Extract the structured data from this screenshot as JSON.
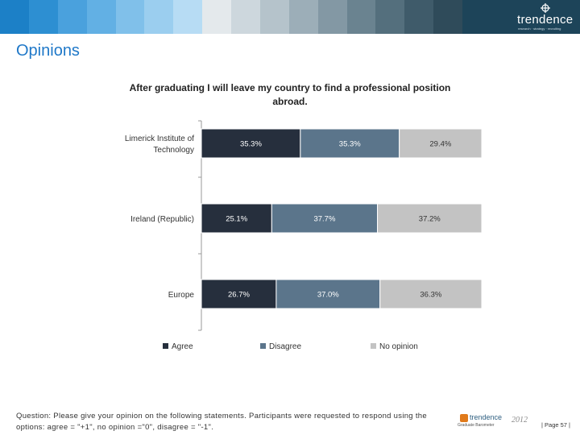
{
  "header": {
    "band_colors": [
      "#1c80c7",
      "#2d8fd2",
      "#4aa1dd",
      "#62b0e4",
      "#80c0ea",
      "#9bceef",
      "#b7dcf4",
      "#e4e9ec",
      "#cdd7dd",
      "#b5c3cb",
      "#9caeb8",
      "#8398a4",
      "#6a8390",
      "#546f7d",
      "#3f5b6a",
      "#2f4b5a",
      "#1d4459"
    ],
    "brand_name": "trendence",
    "brand_tagline": "research · strategy · recruiting"
  },
  "section_title": "Opinions",
  "chart_data": {
    "type": "bar",
    "orientation": "horizontal",
    "stacked": true,
    "title": "After graduating I will leave my country to find a professional position abroad.",
    "title_lines": [
      "After graduating I will leave my country to find a professional position",
      "abroad."
    ],
    "categories": [
      "Limerick Institute of Technology",
      "Ireland (Republic)",
      "Europe"
    ],
    "category_lines": [
      [
        "Limerick Institute of",
        "Technology"
      ],
      [
        "Ireland (Republic)"
      ],
      [
        "Europe"
      ]
    ],
    "series": [
      {
        "name": "Agree",
        "values": [
          35.3,
          25.1,
          26.7
        ],
        "labels": [
          "35.3%",
          "25.1%",
          "26.7%"
        ],
        "color": "#262f3d"
      },
      {
        "name": "Disagree",
        "values": [
          35.3,
          37.7,
          37.0
        ],
        "labels": [
          "35.3%",
          "37.7%",
          "37.0%"
        ],
        "color": "#5b758b"
      },
      {
        "name": "No opinion",
        "values": [
          29.4,
          37.2,
          36.3
        ],
        "labels": [
          "29.4%",
          "37.2%",
          "36.3%"
        ],
        "color": "#c3c3c3"
      }
    ],
    "xlim": [
      0,
      100
    ],
    "grid": false,
    "legend_position": "bottom"
  },
  "footer": {
    "question_line1": "Question: Please give your opinion on the following statements. Participants were requested to respond using the",
    "question_line2": "options: agree = \"+1\", no opinion =\"0\", disagree = \"-1\".",
    "logo_name": "trendence",
    "logo_sub": "Graduate Barometer",
    "logo_year": "2012",
    "page_number": "| Page 57 |"
  }
}
